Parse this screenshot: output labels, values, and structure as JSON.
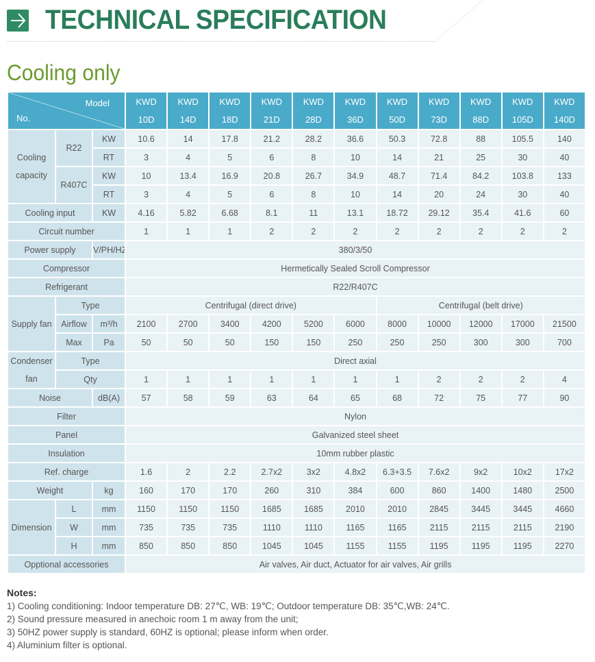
{
  "header": {
    "title": "TECHNICAL SPECIFICATION",
    "icon": "arrow-right-icon",
    "color": "#2a7d5c"
  },
  "section_title": "Cooling only",
  "table": {
    "corner": {
      "model": "Model",
      "no": "No."
    },
    "models": [
      {
        "l1": "KWD",
        "l2": "10D"
      },
      {
        "l1": "KWD",
        "l2": "14D"
      },
      {
        "l1": "KWD",
        "l2": "18D"
      },
      {
        "l1": "KWD",
        "l2": "21D"
      },
      {
        "l1": "KWD",
        "l2": "28D"
      },
      {
        "l1": "KWD",
        "l2": "36D"
      },
      {
        "l1": "KWD",
        "l2": "50D"
      },
      {
        "l1": "KWD",
        "l2": "73D"
      },
      {
        "l1": "KWD",
        "l2": "88D"
      },
      {
        "l1": "KWD",
        "l2": "105D"
      },
      {
        "l1": "KWD",
        "l2": "140D"
      }
    ],
    "cooling_capacity": {
      "label_1": "Cooling",
      "label_2": "capacity",
      "r22": {
        "label": "R22",
        "kw": {
          "unit": "KW",
          "values": [
            "10.6",
            "14",
            "17.8",
            "21.2",
            "28.2",
            "36.6",
            "50.3",
            "72.8",
            "88",
            "105.5",
            "140"
          ]
        },
        "rt": {
          "unit": "RT",
          "values": [
            "3",
            "4",
            "5",
            "6",
            "8",
            "10",
            "14",
            "21",
            "25",
            "30",
            "40"
          ]
        }
      },
      "r407c": {
        "label": "R407C",
        "kw": {
          "unit": "KW",
          "values": [
            "10",
            "13.4",
            "16.9",
            "20.8",
            "26.7",
            "34.9",
            "48.7",
            "71.4",
            "84.2",
            "103.8",
            "133"
          ]
        },
        "rt": {
          "unit": "RT",
          "values": [
            "3",
            "4",
            "5",
            "6",
            "8",
            "10",
            "14",
            "20",
            "24",
            "30",
            "40"
          ]
        }
      }
    },
    "cooling_input": {
      "label": "Cooling input",
      "unit": "KW",
      "values": [
        "4.16",
        "5.82",
        "6.68",
        "8.1",
        "11",
        "13.1",
        "18.72",
        "29.12",
        "35.4",
        "41.6",
        "60"
      ]
    },
    "circuit_number": {
      "label": "Circuit number",
      "values": [
        "1",
        "1",
        "1",
        "2",
        "2",
        "2",
        "2",
        "2",
        "2",
        "2",
        "2"
      ]
    },
    "power_supply": {
      "label": "Power supply",
      "unit": "V/PH/HZ",
      "value": "380/3/50"
    },
    "compressor": {
      "label": "Compressor",
      "value": "Hermetically Sealed Scroll Compressor"
    },
    "refrigerant": {
      "label": "Refrigerant",
      "value": "R22/R407C"
    },
    "supply_fan": {
      "label": "Supply fan",
      "type": {
        "label": "Type",
        "direct": "Centrifugal (direct drive)",
        "belt": "Centrifugal (belt drive)"
      },
      "airflow": {
        "label": "Airflow",
        "unit": "m³/h",
        "values": [
          "2100",
          "2700",
          "3400",
          "4200",
          "5200",
          "6000",
          "8000",
          "10000",
          "12000",
          "17000",
          "21500"
        ]
      },
      "max": {
        "label": "Max",
        "unit": "Pa",
        "values": [
          "50",
          "50",
          "50",
          "150",
          "150",
          "250",
          "250",
          "250",
          "300",
          "300",
          "700"
        ]
      }
    },
    "condenser_fan": {
      "label_1": "Condenser",
      "label_2": "fan",
      "type": {
        "label": "Type",
        "value": "Direct axial"
      },
      "qty": {
        "label": "Qty",
        "values": [
          "1",
          "1",
          "1",
          "1",
          "1",
          "1",
          "1",
          "2",
          "2",
          "2",
          "4"
        ]
      }
    },
    "noise": {
      "label": "Noise",
      "unit": "dB(A)",
      "values": [
        "57",
        "58",
        "59",
        "63",
        "64",
        "65",
        "68",
        "72",
        "75",
        "77",
        "90"
      ]
    },
    "filter": {
      "label": "Filter",
      "value": "Nylon"
    },
    "panel": {
      "label": "Panel",
      "value": "Galvanized steel sheet"
    },
    "insulation": {
      "label": "Insulation",
      "value": "10mm rubber plastic"
    },
    "ref_charge": {
      "label": "Ref. charge",
      "values": [
        "1.6",
        "2",
        "2.2",
        "2.7x2",
        "3x2",
        "4.8x2",
        "6.3+3.5",
        "7.6x2",
        "9x2",
        "10x2",
        "17x2"
      ]
    },
    "weight": {
      "label": "Weight",
      "unit": "kg",
      "values": [
        "160",
        "170",
        "170",
        "260",
        "310",
        "384",
        "600",
        "860",
        "1400",
        "1480",
        "2500"
      ]
    },
    "dimension": {
      "label": "Dimension",
      "l": {
        "label": "L",
        "unit": "mm",
        "values": [
          "1150",
          "1150",
          "1150",
          "1685",
          "1685",
          "2010",
          "2010",
          "2845",
          "3445",
          "3445",
          "4660"
        ]
      },
      "w": {
        "label": "W",
        "unit": "mm",
        "values": [
          "735",
          "735",
          "735",
          "1110",
          "1110",
          "1165",
          "1165",
          "2115",
          "2115",
          "2115",
          "2190"
        ]
      },
      "h": {
        "label": "H",
        "unit": "mm",
        "values": [
          "850",
          "850",
          "850",
          "1045",
          "1045",
          "1155",
          "1155",
          "1195",
          "1195",
          "1195",
          "2270"
        ]
      }
    },
    "optional_accessories": {
      "label": "Opptional accessories",
      "value": "Air valves, Air duct, Actuator for air valves,   Air grills"
    }
  },
  "notes": {
    "title": "Notes:",
    "items": [
      "1) Cooling conditioning: Indoor temperature DB: 27℃, WB: 19℃; Outdoor temperature DB: 35℃,WB: 24℃.",
      "2) Sound pressure measured in anechoic room 1 m away from the unit;",
      "3) 50HZ power supply is standard, 60HZ is optional; please inform when order.",
      "4) Aluminium filter is optional."
    ]
  },
  "colors": {
    "header_bg": "#4aaac9",
    "label_bg": "#cfe3ec",
    "cell_bg": "#e9f2f5",
    "separator": "#3d8ba0",
    "section_title": "#6b9a2f"
  }
}
